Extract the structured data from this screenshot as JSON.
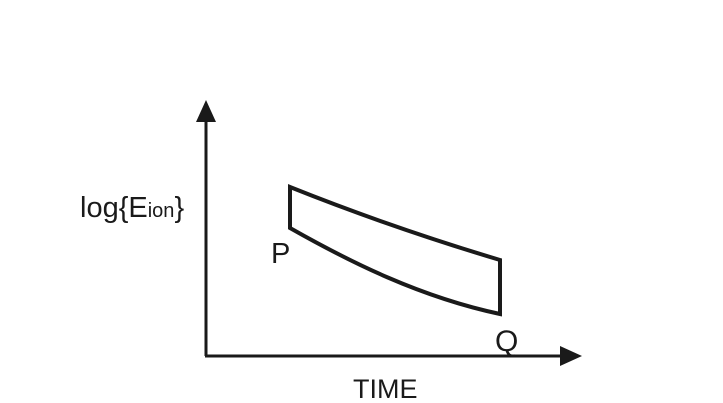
{
  "diagram": {
    "y_axis_label": {
      "prefix": "log{E",
      "subscript": "ion",
      "suffix": "}"
    },
    "x_axis_label": "TIME",
    "point_labels": {
      "p": "P",
      "q": "Q"
    },
    "colors": {
      "stroke": "#1a1a1a",
      "background": "#ffffff"
    }
  }
}
